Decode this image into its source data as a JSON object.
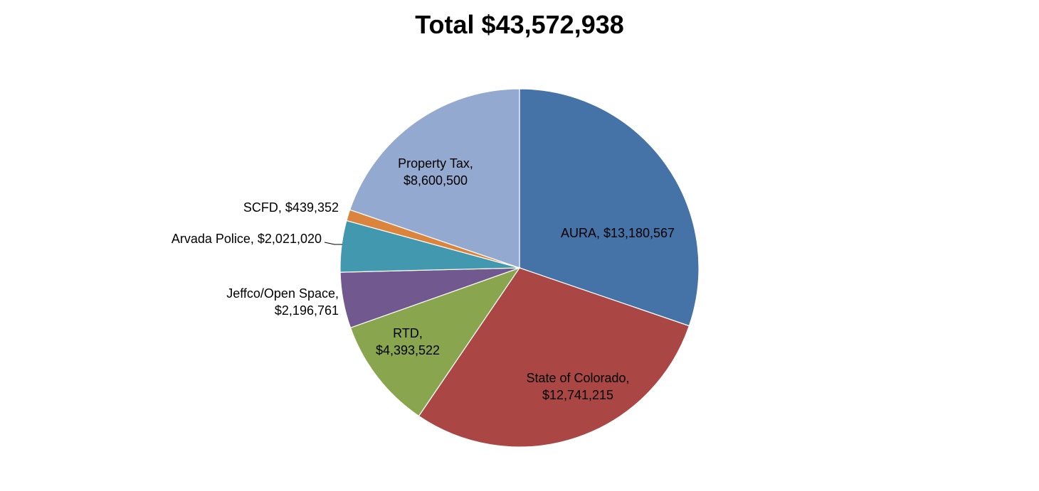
{
  "chart_data": {
    "type": "pie",
    "title": "Total $43,572,938",
    "slices": [
      {
        "label": "AURA",
        "value_text": "$13,180,567",
        "value": 13180567,
        "color": "#4572A7"
      },
      {
        "label": "State of Colorado",
        "value_text": "$12,741,215",
        "value": 12741215,
        "color": "#AA4643"
      },
      {
        "label": "RTD",
        "value_text": "$4,393,522",
        "value": 4393522,
        "color": "#89A54E"
      },
      {
        "label": "Jeffco/Open Space",
        "value_text": "$2,196,761",
        "value": 2196761,
        "color": "#71588F"
      },
      {
        "label": "Arvada Police",
        "value_text": "$2,021,020",
        "value": 2021020,
        "color": "#4198AF"
      },
      {
        "label": "SCFD",
        "value_text": "$439,352",
        "value": 439352,
        "color": "#DB843D"
      },
      {
        "label": "Property Tax",
        "value_text": "$8,600,500",
        "value": 8600500,
        "color": "#93A9CF"
      }
    ]
  }
}
